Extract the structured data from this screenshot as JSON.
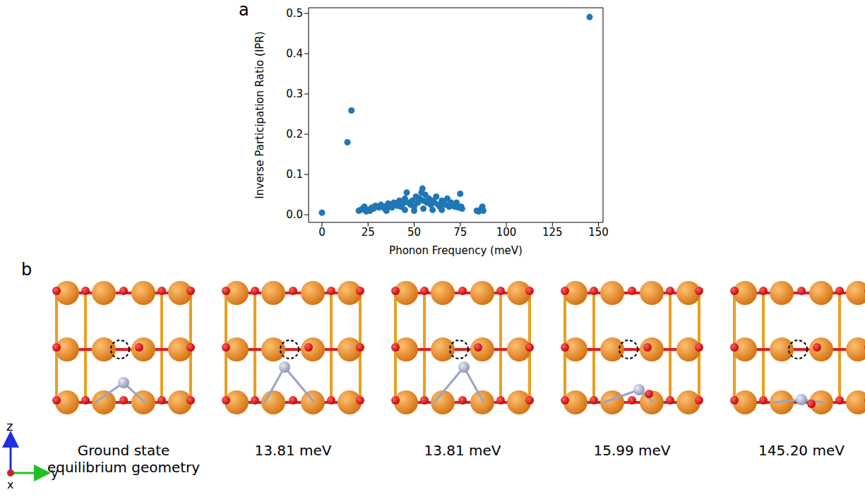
{
  "panel_labels": [
    "a",
    "b"
  ],
  "chart_data": {
    "type": "scatter",
    "x_label": "Phonon Frequency (meV)",
    "y_label": "Inverse Participation Ratio (IPR)",
    "color": "#1f77b4",
    "marker": "circle",
    "xlim": [
      -7.26,
      152.46
    ],
    "xticks": [
      0,
      25,
      50,
      75,
      100,
      125,
      150
    ],
    "ylim": [
      -0.019,
      0.514
    ],
    "yticks": [
      {
        "value": 0,
        "label": "0.0"
      },
      0.1,
      0.2,
      0.3,
      0.4,
      0.5
    ],
    "x": [
      0,
      13.81,
      15.99,
      145.2,
      20,
      21,
      22,
      23,
      24,
      25,
      26,
      27,
      28,
      29,
      30,
      31,
      32,
      33,
      34,
      35,
      36,
      37,
      38,
      39,
      40,
      41,
      42,
      43,
      44,
      45,
      46,
      47,
      48,
      49,
      50,
      51,
      52,
      53,
      54,
      54.5,
      55,
      56,
      57,
      58,
      59,
      60,
      61,
      62,
      63,
      64,
      65,
      66,
      67,
      68,
      69,
      70,
      71,
      72,
      73,
      74,
      75,
      75.5,
      76,
      84,
      85,
      86,
      87,
      87.5,
      35,
      45,
      55,
      65,
      50,
      60
    ],
    "values": [
      0.005,
      0.18,
      0.259,
      0.491,
      0.01,
      0.012,
      0.015,
      0.02,
      0.008,
      0.012,
      0.01,
      0.018,
      0.015,
      0.022,
      0.02,
      0.018,
      0.025,
      0.02,
      0.015,
      0.022,
      0.028,
      0.02,
      0.018,
      0.03,
      0.025,
      0.022,
      0.035,
      0.02,
      0.028,
      0.04,
      0.055,
      0.03,
      0.025,
      0.035,
      0.02,
      0.045,
      0.03,
      0.04,
      0.055,
      0.065,
      0.035,
      0.05,
      0.03,
      0.04,
      0.025,
      0.035,
      0.03,
      0.045,
      0.025,
      0.02,
      0.035,
      0.03,
      0.025,
      0.04,
      0.02,
      0.03,
      0.025,
      0.02,
      0.03,
      0.018,
      0.052,
      0.02,
      0.015,
      0.01,
      0.008,
      0.012,
      0.02,
      0.01,
      0.01,
      0.012,
      0.015,
      0.012,
      0.01,
      0.012
    ]
  },
  "panel_b": {
    "captions": [
      "Ground state equilibrium geometry",
      "13.81 meV",
      "13.81 meV",
      "15.99 meV",
      "145.20 meV"
    ],
    "axis_labels": [
      "z",
      "y",
      "x"
    ]
  }
}
